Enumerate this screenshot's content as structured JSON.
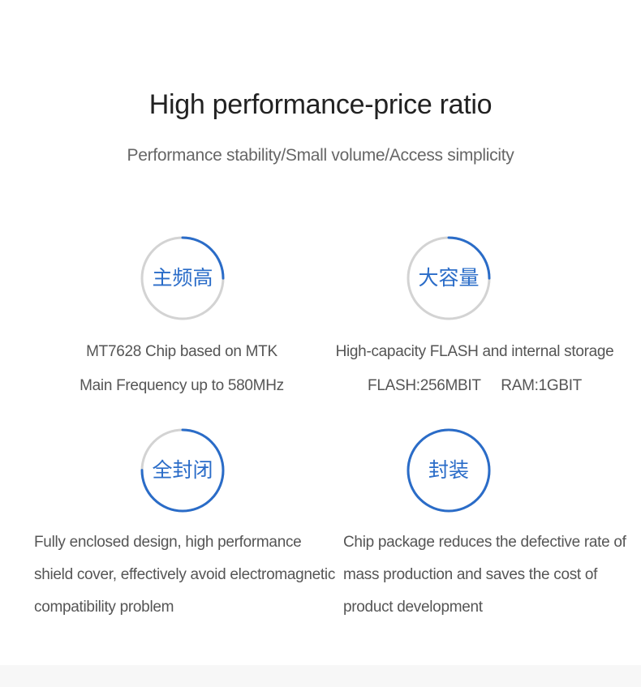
{
  "header": {
    "title": "High performance-price ratio",
    "subtitle": "Performance stability/Small volume/Access simplicity"
  },
  "colors": {
    "accent": "#2a6cc8",
    "ring_gray": "#d3d3d3"
  },
  "features": [
    {
      "badge": "主频高",
      "badge_progress": 0.25,
      "lines": [
        "MT7628 Chip based on MTK",
        "Main Frequency up to 580MHz"
      ]
    },
    {
      "badge": "大容量",
      "badge_progress": 0.25,
      "lines": [
        "High-capacity FLASH and internal storage",
        "FLASH:256MBIT     RAM:1GBIT"
      ]
    },
    {
      "badge": "全封闭",
      "badge_progress": 0.75,
      "lines": [
        "Fully enclosed design, high performance",
        "shield cover, effectively avoid electromagnetic",
        "compatibility problem"
      ]
    },
    {
      "badge": "封装",
      "badge_progress": 1.0,
      "lines": [
        "Chip package reduces the defective rate of",
        "mass production and saves the cost of",
        "product development"
      ]
    }
  ]
}
